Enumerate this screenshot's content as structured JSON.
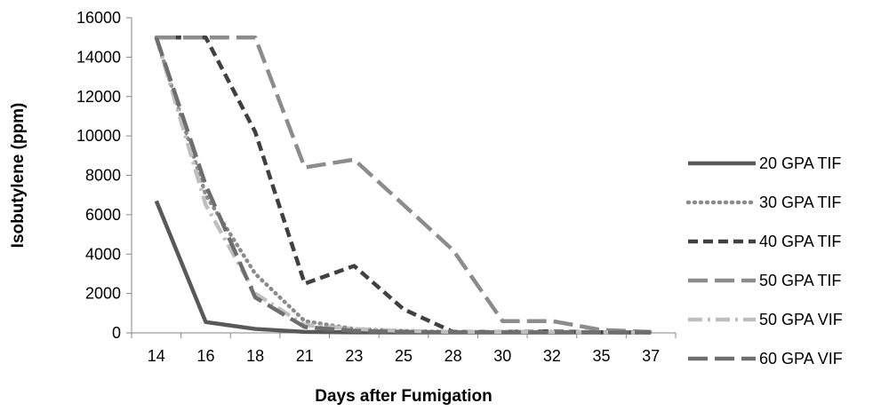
{
  "chart_data": {
    "type": "line",
    "xlabel": "Days after Fumigation",
    "ylabel": "Isobutylene (ppm)",
    "ylim": [
      0,
      16000
    ],
    "yticks": [
      "0",
      "2000",
      "4000",
      "6000",
      "8000",
      "10000",
      "12000",
      "14000",
      "16000"
    ],
    "categories": [
      "14",
      "16",
      "18",
      "21",
      "23",
      "25",
      "28",
      "30",
      "32",
      "35",
      "37"
    ],
    "grid": false,
    "legend_position": "right",
    "series": [
      {
        "name": "20 GPA TIF",
        "color": "#595959",
        "dash": "solid",
        "values": [
          6700,
          550,
          200,
          50,
          30,
          20,
          20,
          20,
          20,
          20,
          20
        ]
      },
      {
        "name": "30 GPA TIF",
        "color": "#8c8c8c",
        "dash": "dotted",
        "values": [
          15000,
          7000,
          3000,
          600,
          200,
          100,
          50,
          50,
          50,
          30,
          30
        ]
      },
      {
        "name": "40 GPA TIF",
        "color": "#404040",
        "dash": "dash",
        "values": [
          15000,
          15000,
          10200,
          2500,
          3400,
          1200,
          50,
          50,
          80,
          30,
          30
        ]
      },
      {
        "name": "50 GPA TIF",
        "color": "#8c8c8c",
        "dash": "longdash",
        "values": [
          15000,
          15000,
          15000,
          8400,
          8800,
          6500,
          4200,
          600,
          600,
          150,
          50
        ]
      },
      {
        "name": "50 GPA VIF",
        "color": "#bfbfbf",
        "dash": "dashdot",
        "values": [
          15000,
          6500,
          2000,
          400,
          200,
          100,
          50,
          50,
          50,
          30,
          30
        ]
      },
      {
        "name": "60 GPA VIF",
        "color": "#6e6e6e",
        "dash": "longdash",
        "values": [
          15000,
          7500,
          1800,
          300,
          100,
          50,
          30,
          30,
          30,
          30,
          30
        ]
      }
    ]
  }
}
